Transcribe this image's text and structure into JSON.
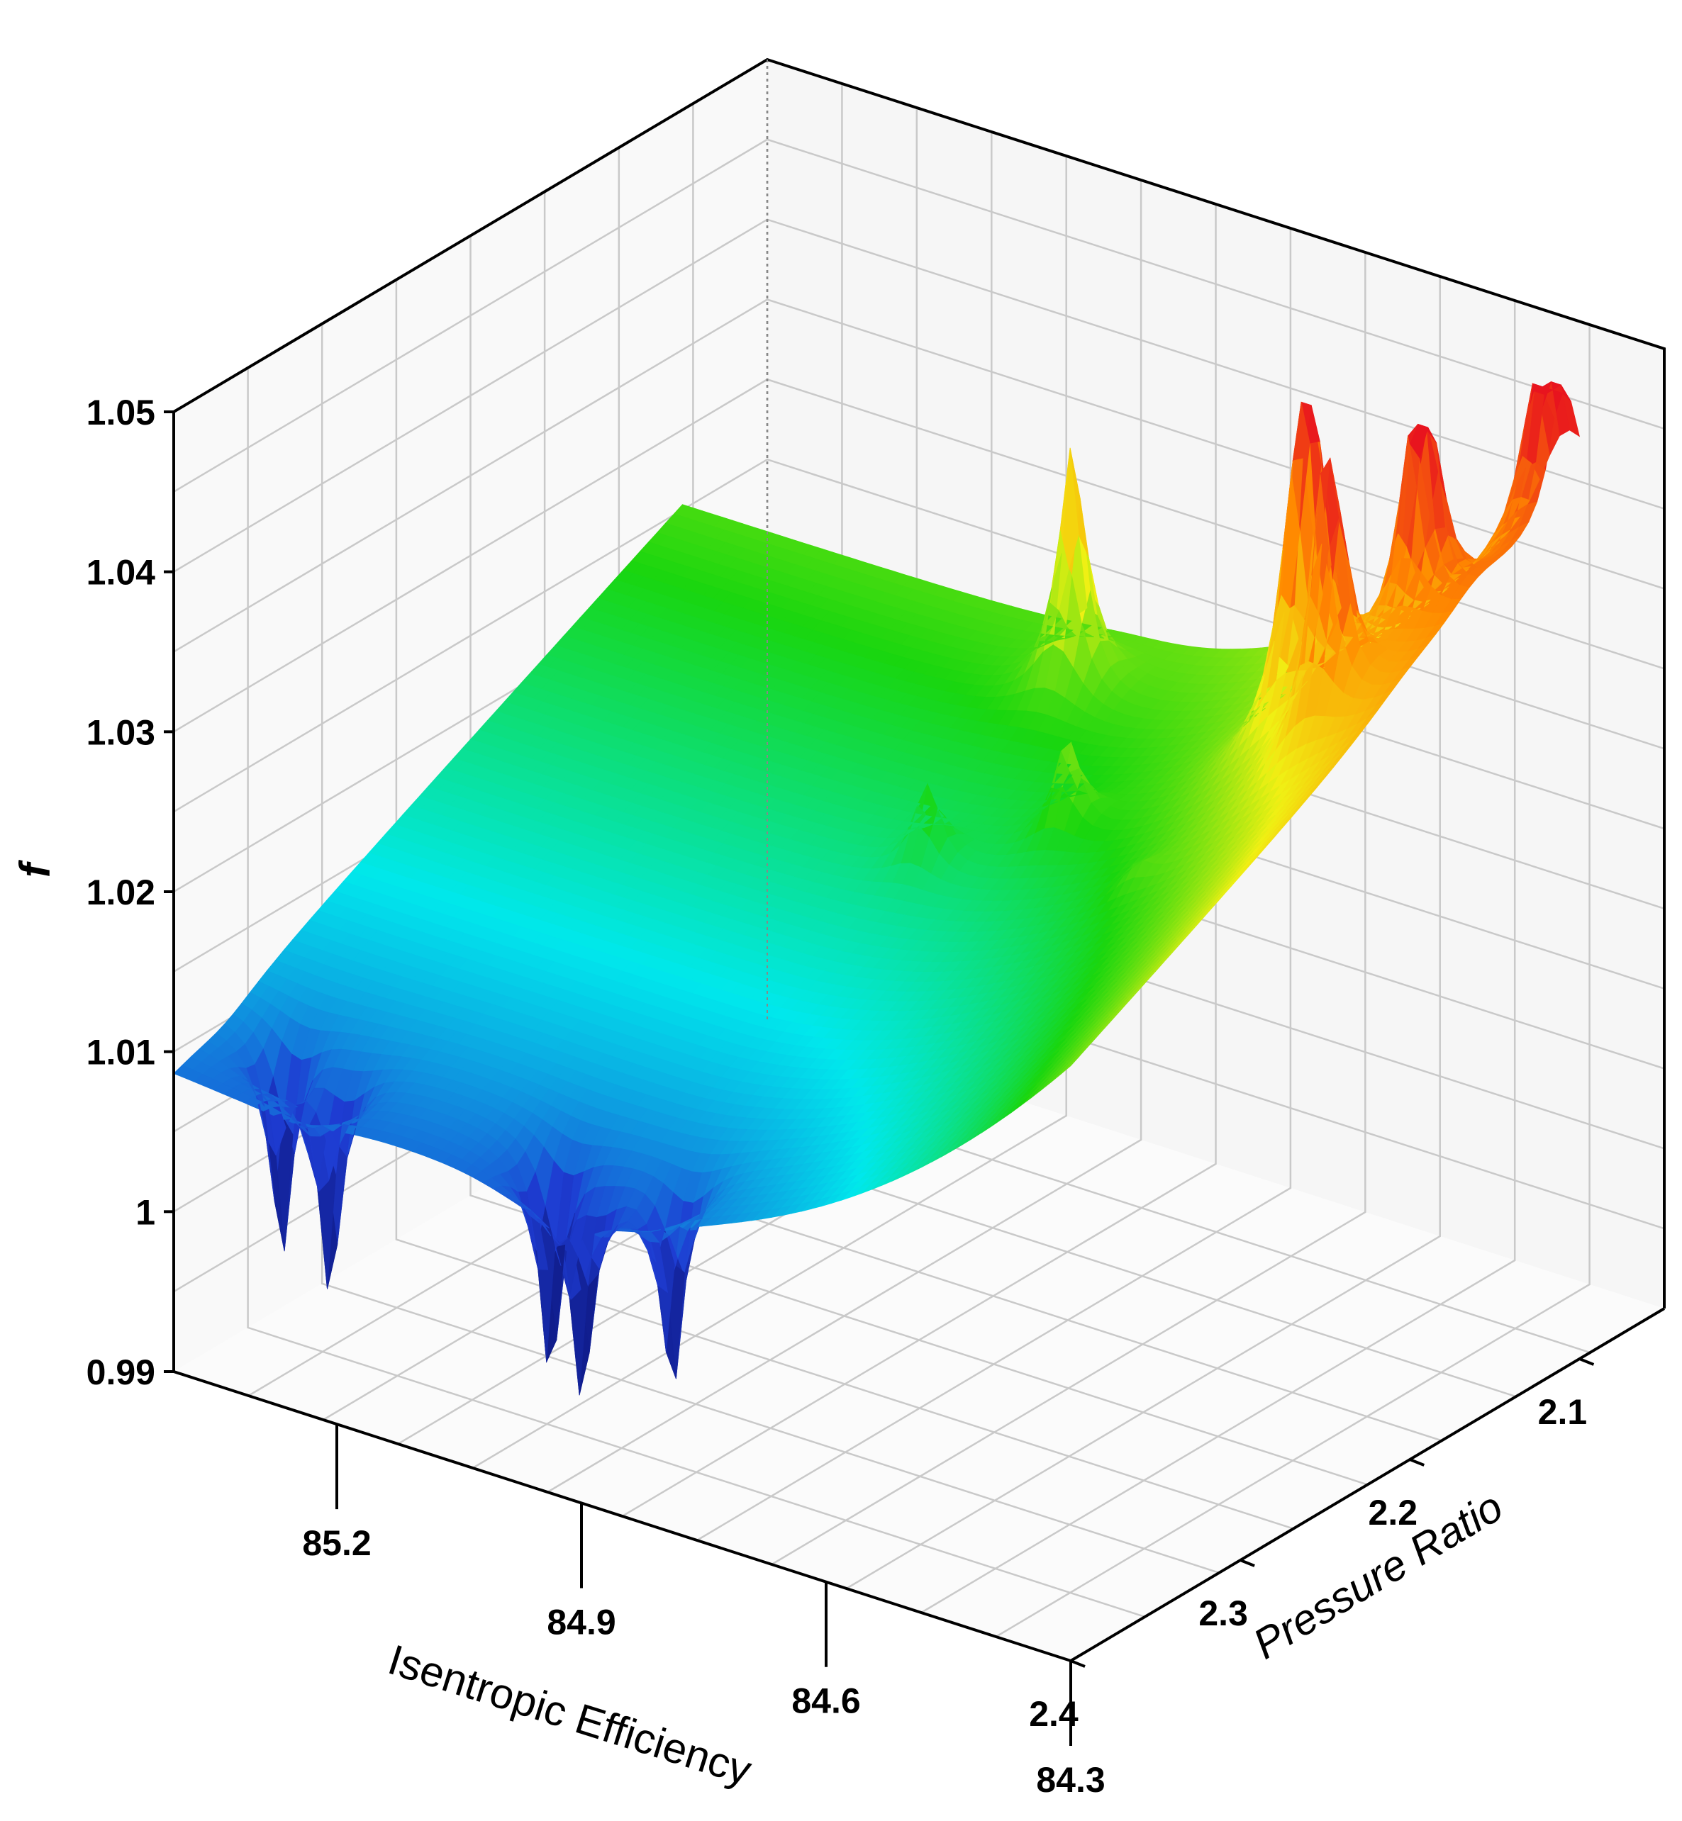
{
  "chart_data": {
    "type": "surface3d",
    "title": "",
    "xlabel": "Isentropic Efficiency",
    "ylabel": "Pressure Ratio",
    "zlabel": "f",
    "x_ticks": [
      "85.2",
      "84.9",
      "84.6",
      "84.3"
    ],
    "y_ticks": [
      "2.1",
      "2.2",
      "2.3",
      "2.4"
    ],
    "z_ticks": [
      "1.05",
      "1.04",
      "1.03",
      "1.02",
      "1.01",
      "1",
      "0.99"
    ],
    "xlim": [
      84.3,
      85.4
    ],
    "ylim": [
      2.05,
      2.4
    ],
    "zlim": [
      0.99,
      1.05
    ],
    "grid": true,
    "colormap": [
      "#0a0f6e",
      "#1e3cd2",
      "#00e8ec",
      "#19d60f",
      "#f0f014",
      "#ff8a00",
      "#e8141e"
    ],
    "surface_base": {
      "front_efficiency_85_4": 1.009,
      "back_pressure_2_1": 1.028
    },
    "features": [
      {
        "kind": "peak",
        "efficiency": 84.49,
        "pressure": 2.17,
        "f": 1.0505
      },
      {
        "kind": "peak",
        "efficiency": 84.4,
        "pressure": 2.2,
        "f": 1.0405
      },
      {
        "kind": "peak",
        "efficiency": 84.37,
        "pressure": 2.16,
        "f": 1.043
      },
      {
        "kind": "peak",
        "efficiency": 84.32,
        "pressure": 2.11,
        "f": 1.042
      },
      {
        "kind": "peak",
        "efficiency": 84.86,
        "pressure": 2.13,
        "f": 1.0395
      },
      {
        "kind": "peak",
        "efficiency": 84.72,
        "pressure": 2.2,
        "f": 1.026
      },
      {
        "kind": "peak",
        "efficiency": 84.85,
        "pressure": 2.22,
        "f": 1.024
      },
      {
        "kind": "peak",
        "efficiency": 84.55,
        "pressure": 2.24,
        "f": 1.019
      },
      {
        "kind": "dip",
        "efficiency": 85.33,
        "pressure": 2.37,
        "f": 0.9967
      },
      {
        "kind": "dip",
        "efficiency": 85.25,
        "pressure": 2.38,
        "f": 0.9962
      },
      {
        "kind": "dip",
        "efficiency": 84.98,
        "pressure": 2.38,
        "f": 0.9958
      },
      {
        "kind": "dip",
        "efficiency": 84.92,
        "pressure": 2.39,
        "f": 0.9962
      },
      {
        "kind": "dip",
        "efficiency": 84.83,
        "pressure": 2.38,
        "f": 0.9968
      }
    ]
  }
}
